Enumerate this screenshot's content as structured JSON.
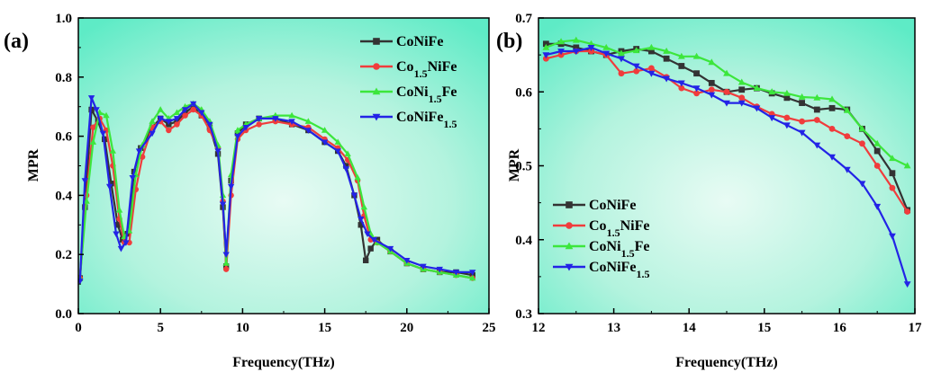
{
  "colors": {
    "CoNiFe": "#333333",
    "Co1.5NiFe": "#f03c3c",
    "CoNi1.5Fe": "#3ce63c",
    "CoNiFe1.5": "#2323e6"
  },
  "chart_data": [
    {
      "type": "line",
      "panel_label": "(a)",
      "xlabel": "Frequency(THz)",
      "ylabel": "MPR",
      "xlim": [
        0,
        25
      ],
      "ylim": [
        0.0,
        1.0
      ],
      "xticks": [
        "0",
        "5",
        "10",
        "15",
        "20",
        "25"
      ],
      "yticks": [
        "0.0",
        "0.2",
        "0.4",
        "0.6",
        "0.8",
        "1.0"
      ],
      "legend_position": "top-right",
      "series": [
        {
          "name": "CoNiFe",
          "legend_base": "CoNiFe",
          "legend_parts": [
            {
              "t": "CoNiFe",
              "sub": false
            }
          ],
          "marker": "square",
          "color_key": "CoNiFe",
          "x": [
            0.1,
            0.4,
            0.8,
            1.2,
            1.6,
            2.0,
            2.4,
            2.7,
            3.0,
            3.4,
            3.8,
            4.5,
            5.0,
            5.5,
            6.0,
            6.5,
            7.0,
            7.5,
            8.0,
            8.5,
            8.8,
            9.0,
            9.3,
            9.7,
            10.2,
            11.0,
            12.0,
            13.0,
            14.0,
            15.0,
            15.8,
            16.3,
            16.8,
            17.2,
            17.5,
            17.8,
            18.2,
            19.0,
            20.0,
            21.0,
            22.0,
            23.0,
            24.0
          ],
          "y": [
            0.12,
            0.36,
            0.69,
            0.65,
            0.59,
            0.44,
            0.3,
            0.25,
            0.27,
            0.48,
            0.56,
            0.63,
            0.66,
            0.64,
            0.65,
            0.68,
            0.7,
            0.67,
            0.63,
            0.54,
            0.36,
            0.16,
            0.45,
            0.61,
            0.64,
            0.66,
            0.66,
            0.64,
            0.62,
            0.58,
            0.55,
            0.5,
            0.4,
            0.3,
            0.18,
            0.22,
            0.25,
            0.21,
            0.17,
            0.15,
            0.14,
            0.14,
            0.13
          ]
        },
        {
          "name": "Co1.5NiFe",
          "legend_base": "Co",
          "legend_parts": [
            {
              "t": "Co",
              "sub": false
            },
            {
              "t": "1.5",
              "sub": true
            },
            {
              "t": "NiFe",
              "sub": false
            }
          ],
          "marker": "circle",
          "color_key": "Co1.5NiFe",
          "x": [
            0.1,
            0.5,
            0.9,
            1.3,
            1.7,
            2.1,
            2.5,
            2.8,
            3.1,
            3.5,
            3.9,
            4.5,
            5.0,
            5.5,
            6.0,
            6.5,
            7.0,
            7.5,
            8.0,
            8.5,
            8.8,
            9.0,
            9.3,
            9.7,
            10.2,
            11.0,
            12.0,
            13.0,
            14.0,
            15.0,
            15.8,
            16.4,
            17.0,
            17.4,
            17.8,
            18.2,
            19.0,
            20.0,
            21.0,
            22.0,
            23.0,
            24.0
          ],
          "y": [
            0.12,
            0.4,
            0.63,
            0.66,
            0.62,
            0.5,
            0.32,
            0.24,
            0.24,
            0.42,
            0.53,
            0.63,
            0.65,
            0.62,
            0.64,
            0.67,
            0.69,
            0.67,
            0.62,
            0.56,
            0.38,
            0.15,
            0.4,
            0.59,
            0.62,
            0.64,
            0.65,
            0.64,
            0.63,
            0.59,
            0.56,
            0.52,
            0.45,
            0.33,
            0.25,
            0.24,
            0.21,
            0.17,
            0.15,
            0.14,
            0.13,
            0.12
          ]
        },
        {
          "name": "CoNi1.5Fe",
          "legend_base": "CoNi",
          "legend_parts": [
            {
              "t": "CoNi",
              "sub": false
            },
            {
              "t": "1.5",
              "sub": true
            },
            {
              "t": "Fe",
              "sub": false
            }
          ],
          "marker": "triangle-up",
          "color_key": "CoNi1.5Fe",
          "x": [
            0.1,
            0.5,
            0.9,
            1.3,
            1.7,
            2.1,
            2.5,
            2.8,
            3.1,
            3.5,
            3.9,
            4.5,
            5.0,
            5.5,
            6.0,
            6.5,
            7.0,
            7.5,
            8.0,
            8.5,
            8.8,
            9.0,
            9.3,
            9.7,
            10.2,
            11.0,
            12.0,
            13.0,
            14.0,
            15.0,
            15.8,
            16.4,
            17.0,
            17.4,
            17.8,
            18.2,
            19.0,
            20.0,
            21.0,
            22.0,
            23.0,
            24.0
          ],
          "y": [
            0.12,
            0.38,
            0.58,
            0.68,
            0.67,
            0.55,
            0.35,
            0.26,
            0.28,
            0.47,
            0.57,
            0.65,
            0.69,
            0.66,
            0.68,
            0.7,
            0.71,
            0.69,
            0.65,
            0.57,
            0.4,
            0.17,
            0.47,
            0.62,
            0.64,
            0.66,
            0.67,
            0.67,
            0.65,
            0.62,
            0.58,
            0.54,
            0.46,
            0.36,
            0.27,
            0.24,
            0.21,
            0.17,
            0.15,
            0.14,
            0.13,
            0.12
          ]
        },
        {
          "name": "CoNiFe1.5",
          "legend_base": "CoNiFe",
          "legend_parts": [
            {
              "t": "CoNiFe",
              "sub": false
            },
            {
              "t": "1.5",
              "sub": true
            }
          ],
          "marker": "triangle-down",
          "color_key": "CoNiFe1.5",
          "x": [
            0.1,
            0.4,
            0.8,
            1.1,
            1.5,
            1.9,
            2.3,
            2.6,
            2.9,
            3.3,
            3.7,
            4.5,
            5.0,
            5.5,
            6.0,
            6.5,
            7.0,
            7.5,
            8.0,
            8.5,
            8.8,
            9.0,
            9.3,
            9.7,
            10.2,
            11.0,
            12.0,
            13.0,
            14.0,
            15.0,
            15.8,
            16.3,
            16.8,
            17.2,
            17.6,
            18.0,
            19.0,
            20.0,
            21.0,
            22.0,
            23.0,
            24.0
          ],
          "y": [
            0.11,
            0.45,
            0.73,
            0.69,
            0.61,
            0.43,
            0.27,
            0.22,
            0.24,
            0.46,
            0.55,
            0.61,
            0.66,
            0.65,
            0.66,
            0.69,
            0.71,
            0.68,
            0.64,
            0.55,
            0.37,
            0.2,
            0.43,
            0.6,
            0.63,
            0.66,
            0.66,
            0.65,
            0.62,
            0.58,
            0.55,
            0.49,
            0.4,
            0.32,
            0.27,
            0.25,
            0.22,
            0.18,
            0.16,
            0.15,
            0.14,
            0.14
          ]
        }
      ]
    },
    {
      "type": "line",
      "panel_label": "(b)",
      "xlabel": "Frequency(THz)",
      "ylabel": "MPR",
      "xlim": [
        12,
        17
      ],
      "ylim": [
        0.3,
        0.7
      ],
      "xticks": [
        "12",
        "13",
        "14",
        "15",
        "16",
        "17"
      ],
      "yticks": [
        "0.3",
        "0.4",
        "0.5",
        "0.6",
        "0.7"
      ],
      "legend_position": "bottom-left",
      "series": [
        {
          "name": "CoNiFe",
          "legend_parts": [
            {
              "t": "CoNiFe",
              "sub": false
            }
          ],
          "marker": "square",
          "color_key": "CoNiFe",
          "x": [
            12.1,
            12.3,
            12.5,
            12.7,
            12.9,
            13.1,
            13.3,
            13.5,
            13.7,
            13.9,
            14.1,
            14.3,
            14.5,
            14.7,
            14.9,
            15.1,
            15.3,
            15.5,
            15.7,
            15.9,
            16.1,
            16.3,
            16.5,
            16.7,
            16.9
          ],
          "y": [
            0.665,
            0.665,
            0.66,
            0.655,
            0.65,
            0.655,
            0.658,
            0.655,
            0.645,
            0.635,
            0.625,
            0.612,
            0.6,
            0.603,
            0.605,
            0.598,
            0.592,
            0.585,
            0.576,
            0.578,
            0.576,
            0.55,
            0.52,
            0.49,
            0.44
          ]
        },
        {
          "name": "Co1.5NiFe",
          "legend_parts": [
            {
              "t": "Co",
              "sub": false
            },
            {
              "t": "1.5",
              "sub": true
            },
            {
              "t": "NiFe",
              "sub": false
            }
          ],
          "marker": "circle",
          "color_key": "Co1.5NiFe",
          "x": [
            12.1,
            12.3,
            12.5,
            12.7,
            12.9,
            13.1,
            13.3,
            13.5,
            13.7,
            13.9,
            14.1,
            14.3,
            14.5,
            14.7,
            14.9,
            15.1,
            15.3,
            15.5,
            15.7,
            15.9,
            16.1,
            16.3,
            16.5,
            16.7,
            16.9
          ],
          "y": [
            0.645,
            0.65,
            0.655,
            0.655,
            0.65,
            0.625,
            0.628,
            0.632,
            0.62,
            0.605,
            0.598,
            0.603,
            0.6,
            0.592,
            0.58,
            0.57,
            0.565,
            0.56,
            0.562,
            0.55,
            0.54,
            0.53,
            0.5,
            0.47,
            0.438
          ]
        },
        {
          "name": "CoNi1.5Fe",
          "legend_parts": [
            {
              "t": "CoNi",
              "sub": false
            },
            {
              "t": "1.5",
              "sub": true
            },
            {
              "t": "Fe",
              "sub": false
            }
          ],
          "marker": "triangle-up",
          "color_key": "CoNi1.5Fe",
          "x": [
            12.1,
            12.3,
            12.5,
            12.7,
            12.9,
            13.1,
            13.3,
            13.5,
            13.7,
            13.9,
            14.1,
            14.3,
            14.5,
            14.7,
            14.9,
            15.1,
            15.3,
            15.5,
            15.7,
            15.9,
            16.1,
            16.3,
            16.5,
            16.7,
            16.9
          ],
          "y": [
            0.66,
            0.668,
            0.67,
            0.665,
            0.66,
            0.652,
            0.656,
            0.66,
            0.655,
            0.648,
            0.648,
            0.64,
            0.625,
            0.613,
            0.605,
            0.6,
            0.598,
            0.593,
            0.592,
            0.59,
            0.575,
            0.55,
            0.53,
            0.51,
            0.5
          ]
        },
        {
          "name": "CoNiFe1.5",
          "legend_parts": [
            {
              "t": "CoNiFe",
              "sub": false
            },
            {
              "t": "1.5",
              "sub": true
            }
          ],
          "marker": "triangle-down",
          "color_key": "CoNiFe1.5",
          "x": [
            12.1,
            12.3,
            12.5,
            12.7,
            12.9,
            13.1,
            13.3,
            13.5,
            13.7,
            13.9,
            14.1,
            14.3,
            14.5,
            14.7,
            14.9,
            15.1,
            15.3,
            15.5,
            15.7,
            15.9,
            16.1,
            16.3,
            16.5,
            16.7,
            16.9
          ],
          "y": [
            0.65,
            0.655,
            0.655,
            0.66,
            0.652,
            0.645,
            0.635,
            0.625,
            0.618,
            0.612,
            0.605,
            0.596,
            0.585,
            0.585,
            0.578,
            0.565,
            0.555,
            0.545,
            0.528,
            0.512,
            0.495,
            0.476,
            0.445,
            0.405,
            0.34
          ]
        }
      ]
    }
  ]
}
